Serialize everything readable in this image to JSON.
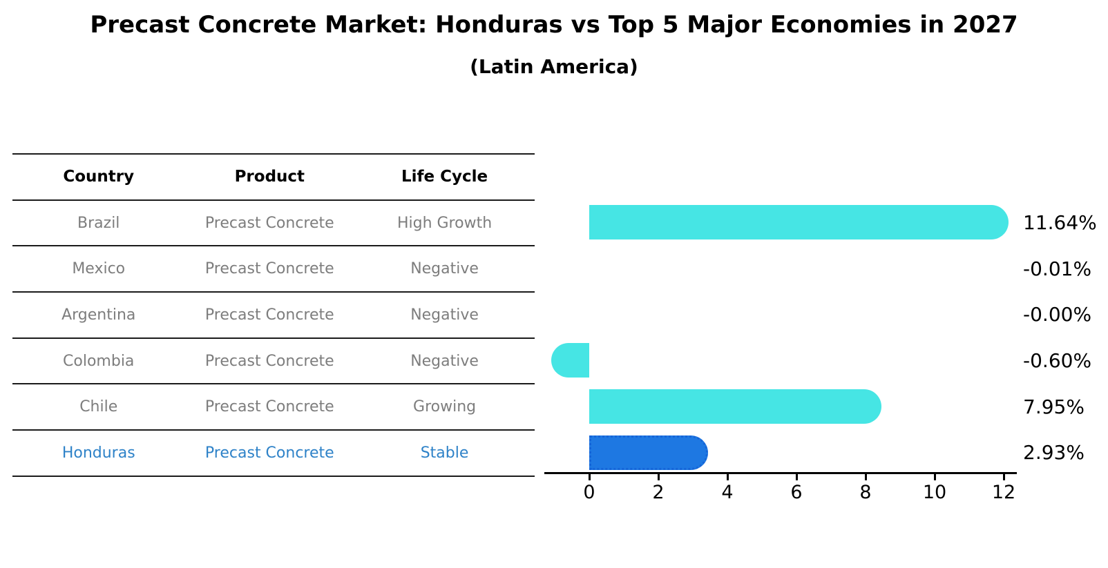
{
  "title": "Precast Concrete Market: Honduras vs Top 5 Major Economies in 2027",
  "subtitle": "(Latin America)",
  "table": {
    "headers": [
      "Country",
      "Product",
      "Life Cycle"
    ],
    "rows": [
      {
        "country": "Brazil",
        "product": "Precast Concrete",
        "life_cycle": "High Growth",
        "highlighted": false
      },
      {
        "country": "Mexico",
        "product": "Precast Concrete",
        "life_cycle": "Negative",
        "highlighted": false
      },
      {
        "country": "Argentina",
        "product": "Precast Concrete",
        "life_cycle": "Negative",
        "highlighted": false
      },
      {
        "country": "Colombia",
        "product": "Precast Concrete",
        "life_cycle": "Negative",
        "highlighted": false
      },
      {
        "country": "Chile",
        "product": "Precast Concrete",
        "life_cycle": "Growing",
        "highlighted": false
      },
      {
        "country": "Honduras",
        "product": "Precast Concrete",
        "life_cycle": "Stable",
        "highlighted": true
      }
    ]
  },
  "chart_data": {
    "type": "bar",
    "orientation": "horizontal",
    "title": "Precast Concrete Market: Honduras vs Top 5 Major Economies in 2027",
    "subtitle": "(Latin America)",
    "categories": [
      "Brazil",
      "Mexico",
      "Argentina",
      "Colombia",
      "Chile",
      "Honduras"
    ],
    "values": [
      11.64,
      -0.01,
      -0.0,
      -0.6,
      7.95,
      2.93
    ],
    "value_labels": [
      "11.64%",
      "-0.01%",
      "-0.00%",
      "-0.60%",
      "7.95%",
      "2.93%"
    ],
    "x_ticks": [
      0,
      2,
      4,
      6,
      8,
      10,
      12
    ],
    "xlim": [
      -1.3,
      12.4
    ],
    "grid": false,
    "legend": null,
    "highlight_index": 5,
    "bar_color": "#46E5E4",
    "highlight_bar_color": "#1E78E2",
    "highlight_border_color": "#1565D8"
  },
  "colors": {
    "background": "#ffffff",
    "title_text": "#000000",
    "table_header_text": "#000000",
    "table_text": "#7d7d7d",
    "highlight_text": "#2E82C8",
    "axis": "#000000",
    "value_label_text": "#000000"
  }
}
